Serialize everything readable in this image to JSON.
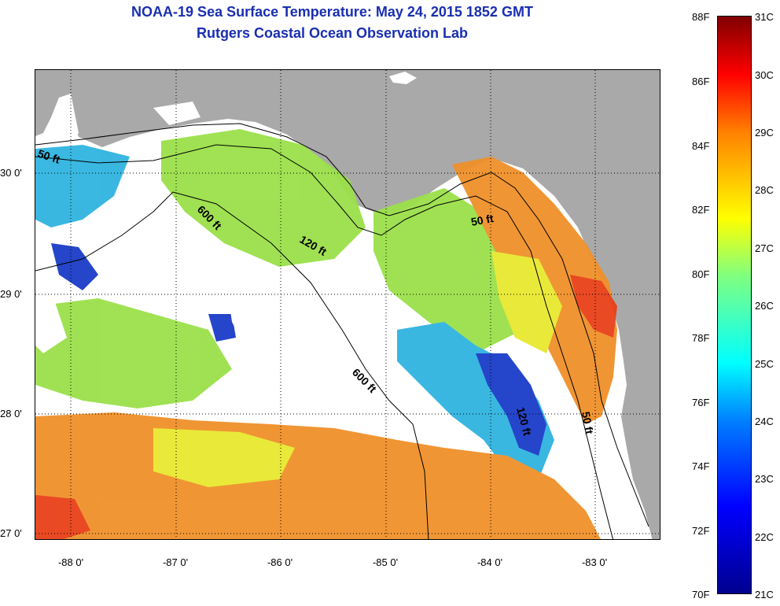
{
  "title": {
    "line1": "NOAA-19 Sea Surface Temperature:  May 24, 2015 1852 GMT",
    "line2": "Rutgers Coastal Ocean Observation Lab"
  },
  "map": {
    "lat_labels": [
      "30 0'",
      "29 0'",
      "28 0'",
      "27 0'"
    ],
    "lon_labels": [
      "-88 0'",
      "-87 0'",
      "-86 0'",
      "-85 0'",
      "-84 0'",
      "-83 0'"
    ],
    "contour_labels": [
      "50 ft",
      "600 ft",
      "120 ft",
      "50 ft",
      "600 ft",
      "120 ft",
      "50 ft"
    ],
    "colors": {
      "land": "#a9a9a9",
      "cloud": "#ffffff",
      "cold": "#1a3cc8",
      "cyan": "#2fb4e0",
      "green": "#9be04a",
      "yellow": "#e8e830",
      "orange": "#f0902a",
      "red": "#e84018"
    }
  },
  "colorbar": {
    "fahrenheit": [
      "88F",
      "86F",
      "84F",
      "82F",
      "80F",
      "78F",
      "76F",
      "74F",
      "72F",
      "70F"
    ],
    "celsius": [
      "31C",
      "30C",
      "29C",
      "28C",
      "27C",
      "26C",
      "25C",
      "24C",
      "23C",
      "22C",
      "21C"
    ]
  }
}
